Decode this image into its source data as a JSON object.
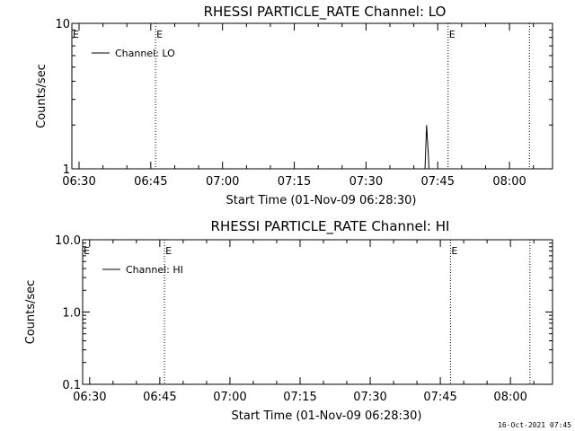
{
  "footer_timestamp": "16-Oct-2021 07:45",
  "chart_data": [
    {
      "type": "line",
      "title": "RHESSI PARTICLE_RATE Channel: LO",
      "xlabel": "Start Time (01-Nov-09 06:28:30)",
      "ylabel": "Counts/sec",
      "y_scale": "log",
      "ylim": [
        1,
        10
      ],
      "y_ticks": [
        1,
        10
      ],
      "y_tick_labels": [
        "1",
        "10"
      ],
      "xlim": [
        "06:28:30",
        "08:09:00"
      ],
      "x_ticks": [
        "06:30",
        "06:45",
        "07:00",
        "07:15",
        "07:30",
        "07:45",
        "08:00"
      ],
      "x_tick_labels": [
        "06:30",
        "06:45",
        "07:00",
        "07:15",
        "07:30",
        "07:45",
        "08:00"
      ],
      "series": [
        {
          "name": "Channel: LO",
          "color": "#000000",
          "points": [
            [
              "07:42:20",
              1
            ],
            [
              "07:42:40",
              2.0
            ],
            [
              "07:43:00",
              1.3
            ],
            [
              "07:43:10",
              1
            ]
          ]
        }
      ],
      "markers": [
        {
          "time": "06:46:00",
          "label": "E"
        },
        {
          "time": "07:47:10",
          "label": "E"
        },
        {
          "time": "08:04:10",
          "label": ""
        }
      ],
      "legend_position": "top-left",
      "grid": false
    },
    {
      "type": "line",
      "title": "RHESSI PARTICLE_RATE Channel: HI",
      "xlabel": "Start Time (01-Nov-09 06:28:30)",
      "ylabel": "Counts/sec",
      "y_scale": "log",
      "ylim": [
        0.1,
        10
      ],
      "y_ticks": [
        0.1,
        1,
        10
      ],
      "y_tick_labels": [
        "0.1",
        "1.0",
        "10.0"
      ],
      "xlim": [
        "06:28:30",
        "08:09:00"
      ],
      "x_ticks": [
        "06:30",
        "06:45",
        "07:00",
        "07:15",
        "07:30",
        "07:45",
        "08:00"
      ],
      "x_tick_labels": [
        "06:30",
        "06:45",
        "07:00",
        "07:15",
        "07:30",
        "07:45",
        "08:00"
      ],
      "series": [
        {
          "name": "Channel: HI",
          "color": "#000000",
          "points": []
        }
      ],
      "markers": [
        {
          "time": "06:46:00",
          "label": "E"
        },
        {
          "time": "07:47:10",
          "label": "E"
        },
        {
          "time": "08:04:10",
          "label": ""
        }
      ],
      "legend_position": "top-left",
      "grid": false
    }
  ]
}
